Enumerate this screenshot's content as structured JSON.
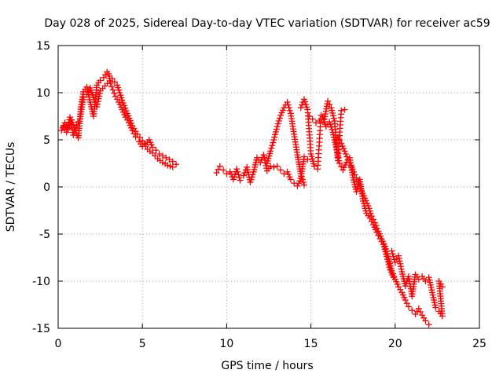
{
  "chart_data": {
    "type": "scatter",
    "title": "Day 028 of 2025, Sidereal Day-to-day VTEC variation (SDTVAR) for receiver ac59",
    "xlabel": "GPS time / hours",
    "ylabel": "SDTVAR / TECUs",
    "xlim": [
      0,
      25
    ],
    "ylim": [
      -15,
      15
    ],
    "xticks": [
      0,
      5,
      10,
      15,
      20,
      25
    ],
    "yticks": [
      -15,
      -10,
      -5,
      0,
      5,
      10,
      15
    ],
    "xtick_labels": [
      "0",
      "5",
      "10",
      "15",
      "20",
      "25"
    ],
    "ytick_labels": [
      "-15",
      "-10",
      "-5",
      "0",
      "5",
      "10",
      "15"
    ],
    "grid": true,
    "marker": "+",
    "color": "#ff0000",
    "series": [
      {
        "name": "SDTVAR",
        "segments": [
          {
            "x": [
              0.2,
              0.4,
              0.6,
              0.8,
              1.0,
              1.2,
              1.35,
              1.5,
              1.7,
              1.9,
              2.1,
              2.3,
              2.5,
              2.7,
              2.9,
              3.0,
              3.1,
              3.25,
              3.4,
              3.6,
              3.8,
              4.0,
              4.2,
              4.4,
              4.6,
              4.8,
              5.0,
              5.2,
              5.4,
              5.6,
              5.8,
              6.0,
              6.2,
              6.4,
              6.6,
              6.8,
              7.0
            ],
            "y": [
              6.0,
              6.8,
              6.2,
              7.1,
              6.0,
              5.2,
              8.5,
              10.1,
              10.6,
              9.0,
              7.5,
              10.8,
              11.3,
              11.6,
              12.2,
              12.0,
              11.0,
              10.3,
              9.6,
              9.0,
              8.2,
              7.4,
              6.8,
              6.0,
              5.3,
              4.8,
              4.3,
              4.5,
              5.0,
              4.2,
              3.9,
              3.5,
              3.3,
              3.1,
              2.9,
              2.7,
              2.4
            ]
          },
          {
            "x": [
              0.3,
              0.5,
              0.7,
              0.9,
              1.1,
              1.3,
              1.5,
              1.7,
              1.9,
              2.1,
              2.3,
              2.5,
              3.2,
              3.5,
              3.8,
              4.1,
              4.4,
              4.7,
              5.0,
              5.3,
              5.6,
              5.9,
              6.2,
              6.5,
              6.8
            ],
            "y": [
              6.4,
              5.8,
              7.4,
              5.5,
              6.6,
              7.2,
              9.5,
              9.8,
              10.5,
              9.5,
              8.5,
              10.2,
              11.5,
              10.8,
              9.2,
              7.8,
              6.5,
              5.6,
              4.9,
              4.0,
              3.6,
              3.0,
              2.6,
              2.3,
              2.1
            ]
          },
          {
            "x": [
              9.4,
              9.6,
              9.8,
              10.0,
              10.2,
              10.4,
              10.6,
              10.8,
              11.0,
              11.2,
              11.4,
              11.6,
              11.8,
              12.0,
              12.2,
              12.4,
              12.6,
              12.8,
              13.0,
              13.2,
              13.4,
              13.6,
              13.8,
              14.0,
              14.2,
              14.4,
              14.6,
              14.8
            ],
            "y": [
              1.5,
              2.2,
              1.8,
              1.4,
              1.6,
              0.8,
              1.9,
              0.7,
              1.2,
              2.1,
              0.5,
              1.6,
              3.1,
              2.6,
              3.4,
              1.7,
              2.2,
              2.1,
              2.2,
              1.8,
              1.4,
              1.6,
              0.8,
              0.4,
              0.1,
              0.9,
              3.2,
              2.9
            ]
          },
          {
            "x": [
              12.4,
              12.6,
              12.8,
              13.0,
              13.2,
              13.4,
              13.6,
              13.8,
              14.0,
              14.2,
              14.4,
              14.6
            ],
            "y": [
              2.5,
              3.8,
              5.0,
              6.4,
              7.6,
              8.4,
              9.0,
              7.8,
              5.6,
              3.4,
              1.4,
              0.2
            ]
          },
          {
            "x": [
              14.4,
              14.6,
              14.8,
              15.0,
              15.2,
              15.4,
              15.6,
              15.8,
              16.0,
              16.2,
              16.4,
              16.6,
              16.8,
              17.0
            ],
            "y": [
              8.4,
              9.3,
              8.2,
              3.5,
              2.2,
              1.9,
              7.6,
              7.2,
              9.1,
              8.4,
              7.0,
              2.8,
              8.1,
              8.2
            ]
          },
          {
            "x": [
              14.9,
              15.1,
              15.3,
              15.5,
              15.7,
              15.9,
              16.1,
              16.3,
              16.5,
              16.7,
              16.9,
              17.1,
              17.3,
              17.5,
              17.7,
              17.9,
              18.1,
              18.3,
              18.5,
              18.7,
              18.9,
              19.1,
              19.3,
              19.5,
              19.7,
              19.9
            ],
            "y": [
              7.5,
              7.2,
              6.8,
              7.0,
              7.4,
              6.4,
              6.9,
              5.8,
              4.2,
              2.5,
              1.8,
              2.6,
              3.1,
              1.0,
              -0.5,
              0.8,
              -1.5,
              -2.8,
              -3.3,
              -4.0,
              -4.8,
              -5.5,
              -6.1,
              -7.4,
              -8.8,
              -9.6
            ]
          },
          {
            "x": [
              16.6,
              16.8,
              17.0,
              17.2,
              17.4,
              17.6,
              17.8,
              18.0,
              18.2,
              18.4,
              18.6,
              18.8,
              19.0,
              19.2,
              19.4,
              19.6,
              19.8,
              20.0,
              20.2,
              20.4,
              20.6,
              20.8,
              21.0,
              21.2,
              21.4,
              21.6,
              21.8,
              22.0
            ],
            "y": [
              5.3,
              4.6,
              3.8,
              2.9,
              2.2,
              1.3,
              0.6,
              -0.4,
              -1.2,
              -2.0,
              -3.1,
              -3.8,
              -4.7,
              -5.5,
              -6.3,
              -7.6,
              -8.9,
              -9.8,
              -10.6,
              -11.2,
              -12.0,
              -12.7,
              -13.1,
              -13.5,
              -12.9,
              -13.6,
              -14.2,
              -14.6
            ]
          },
          {
            "x": [
              19.8,
              20.0,
              20.2,
              20.4,
              20.6,
              20.8,
              21.0,
              21.2,
              21.4,
              21.6,
              21.8,
              22.0,
              22.4,
              22.6,
              22.8,
              22.6,
              22.8
            ],
            "y": [
              -6.8,
              -8.0,
              -7.3,
              -9.0,
              -10.5,
              -9.5,
              -11.6,
              -9.3,
              -9.8,
              -9.5,
              -10.0,
              -9.6,
              -12.8,
              -13.2,
              -13.7,
              -10.0,
              -10.6
            ]
          }
        ]
      }
    ]
  }
}
